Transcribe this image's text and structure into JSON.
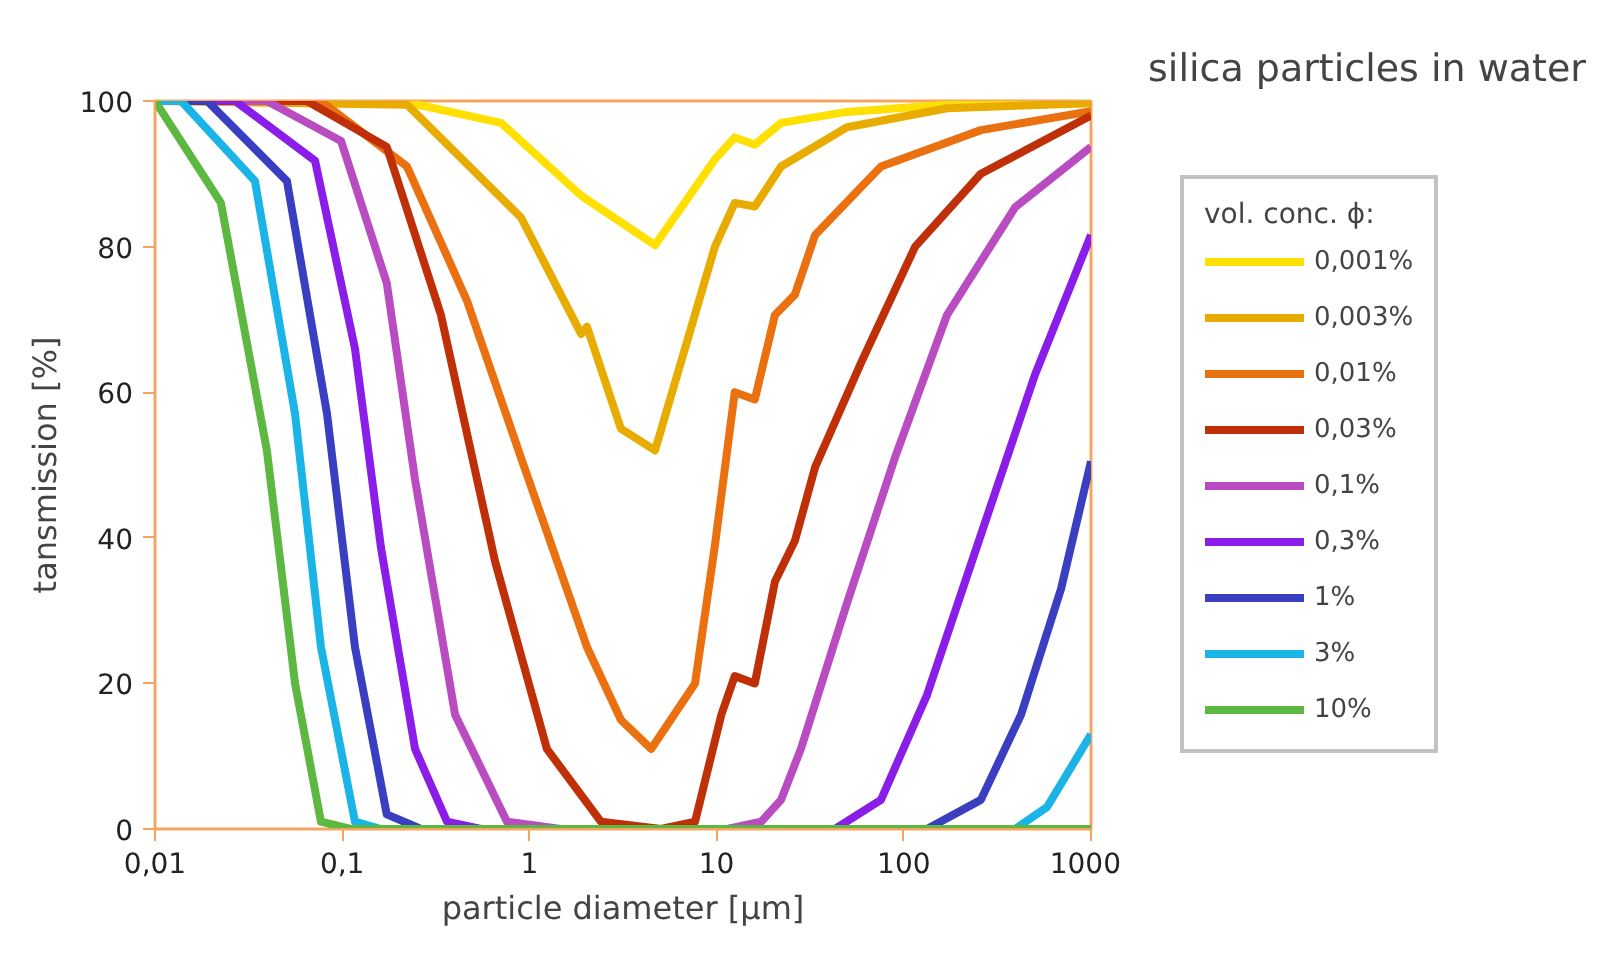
{
  "chart_data": {
    "type": "line",
    "title": "silica particles in water",
    "legend_title": "vol. conc. ϕ:",
    "xlabel": "particle diameter [µm]",
    "ylabel": "tansmission [%]",
    "log": "x",
    "grid": false,
    "legend": "right",
    "line_style": "solid",
    "xlim": [
      0.01,
      1000
    ],
    "xticks": [
      {
        "value": 0.01,
        "label": "0,01"
      },
      {
        "value": 0.1,
        "label": "0,1"
      },
      1,
      10,
      100,
      1000
    ],
    "ylim": [
      0,
      100
    ],
    "yticks": [
      0,
      20,
      40,
      60,
      80,
      100
    ],
    "series": [
      {
        "name": "0,001%",
        "color": "#ffe000",
        "x": [
          0.01,
          0.206,
          0.705,
          1.89,
          4.69,
          9.8,
          12.5,
          16.0,
          22.1,
          49.7,
          170,
          1000
        ],
        "values": [
          100,
          100,
          97,
          87,
          80.2,
          92,
          95,
          94,
          97,
          98.5,
          99.5,
          100
        ]
      },
      {
        "name": "0,003%",
        "color": "#e8ac00",
        "x": [
          0.01,
          0.222,
          0.902,
          1.89,
          2.03,
          3.08,
          4.69,
          9.8,
          12.5,
          16.0,
          22.1,
          49.7,
          170,
          1000
        ],
        "values": [
          100,
          99.5,
          84,
          68,
          69,
          55,
          52,
          80,
          86,
          85.5,
          91,
          96.4,
          99,
          99.7
        ]
      },
      {
        "name": "0,01%",
        "color": "#ea7010",
        "x": [
          0.01,
          0.077,
          0.222,
          0.465,
          0.902,
          2.03,
          3.08,
          4.47,
          7.67,
          9.8,
          12.5,
          16.0,
          20.5,
          26.2,
          33.6,
          75.5,
          258,
          1000
        ],
        "values": [
          100,
          100,
          91,
          72.5,
          51,
          25,
          15,
          11,
          20,
          39,
          60,
          59,
          70.6,
          73.4,
          81.6,
          91,
          96,
          98.6
        ]
      },
      {
        "name": "0,03%",
        "color": "#c03008",
        "x": [
          0.01,
          0.0649,
          0.173,
          0.337,
          0.655,
          1.24,
          2.41,
          5.05,
          7.67,
          10.6,
          12.5,
          16.0,
          20.5,
          26.2,
          33.6,
          59,
          115,
          258,
          1000
        ],
        "values": [
          100,
          100,
          93.7,
          70.6,
          36.8,
          11,
          1,
          0,
          1,
          15.7,
          21,
          20,
          34,
          39.6,
          49.7,
          64,
          80,
          90,
          98
        ]
      },
      {
        "name": "0,1%",
        "color": "#b84cc0",
        "x": [
          0.01,
          0.0396,
          0.0986,
          0.173,
          0.245,
          0.401,
          0.759,
          1.47,
          11.4,
          17.3,
          22.1,
          28.2,
          49.7,
          89.7,
          170,
          393,
          1000
        ],
        "values": [
          100,
          100,
          94.5,
          75,
          48,
          15.7,
          1,
          0,
          0,
          1,
          4,
          11,
          31,
          51,
          70.6,
          85.4,
          93.7
        ]
      },
      {
        "name": "0,3%",
        "color": "#8a1ee8",
        "x": [
          0.01,
          0.0268,
          0.0716,
          0.117,
          0.161,
          0.245,
          0.363,
          0.551,
          42.9,
          75.5,
          133,
          258,
          502,
          1000
        ],
        "values": [
          100,
          100,
          91.8,
          66,
          38.7,
          11,
          1,
          0,
          0,
          4,
          18.4,
          40.4,
          62.4,
          81.6
        ]
      },
      {
        "name": "1%",
        "color": "#3a3ec0",
        "x": [
          0.01,
          0.019,
          0.0507,
          0.083,
          0.117,
          0.173,
          0.264,
          133,
          258,
          423,
          692,
          1000
        ],
        "values": [
          100,
          100,
          89,
          57,
          25,
          2,
          0,
          0,
          4,
          15.7,
          33,
          50.5
        ]
      },
      {
        "name": "3%",
        "color": "#1ab4e6",
        "x": [
          0.01,
          0.0138,
          0.0342,
          0.056,
          0.077,
          0.117,
          0.161,
          393,
          582,
          1000
        ],
        "values": [
          100,
          100,
          89,
          57,
          25,
          1,
          0,
          0,
          3,
          13
        ]
      },
      {
        "name": "10%",
        "color": "#5cb840",
        "x": [
          0.01,
          0.0225,
          0.0396,
          0.056,
          0.077,
          0.111,
          1000
        ],
        "values": [
          100,
          86,
          52,
          20,
          1,
          0,
          0
        ]
      }
    ]
  }
}
